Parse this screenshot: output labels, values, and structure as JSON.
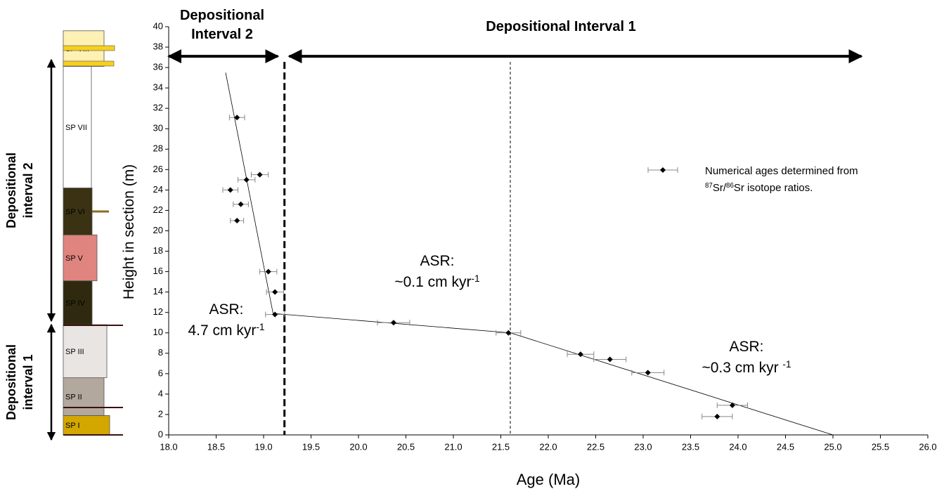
{
  "chart_data": {
    "type": "scatter",
    "x_label": "Age (Ma)",
    "y_label": "Height in section (m)",
    "xlim": [
      18,
      26
    ],
    "ylim": [
      0,
      40
    ],
    "xticks": [
      {
        "value": 18,
        "label": "18.0"
      },
      {
        "value": 18.5,
        "label": "18.5"
      },
      {
        "value": 19,
        "label": "19.0"
      },
      {
        "value": 19.5,
        "label": "19.5"
      },
      {
        "value": 20,
        "label": "20.0"
      },
      {
        "value": 20.5,
        "label": "20.5"
      },
      {
        "value": 21,
        "label": "21.0"
      },
      {
        "value": 21.5,
        "label": "21.5"
      },
      {
        "value": 22,
        "label": "22.0"
      },
      {
        "value": 22.5,
        "label": "22.5"
      },
      {
        "value": 23,
        "label": "23.0"
      },
      {
        "value": 23.5,
        "label": "23.5"
      },
      {
        "value": 24,
        "label": "24.0"
      },
      {
        "value": 24.5,
        "label": "24.5"
      },
      {
        "value": 25,
        "label": "25.0"
      },
      {
        "value": 25.5,
        "label": "25.5"
      },
      {
        "value": 26,
        "label": "26.0"
      }
    ],
    "yticks": [
      0,
      2,
      4,
      6,
      8,
      10,
      12,
      14,
      16,
      18,
      20,
      22,
      24,
      26,
      28,
      30,
      32,
      34,
      36,
      38,
      40
    ],
    "series": [
      {
        "color": "#000000",
        "x": [
          18.72,
          18.96,
          18.82,
          18.65,
          18.76,
          18.72,
          19.05,
          19.12,
          19.12,
          20.37,
          21.58,
          22.34,
          22.65,
          23.05,
          23.94,
          23.78
        ],
        "y": [
          31.1,
          25.5,
          25.0,
          24.0,
          22.6,
          21.0,
          16.0,
          14.0,
          11.8,
          11.0,
          10.0,
          7.9,
          7.4,
          6.1,
          2.9,
          1.8
        ],
        "xerr": [
          0.08,
          0.09,
          0.09,
          0.08,
          0.08,
          0.07,
          0.09,
          0.09,
          0.1,
          0.17,
          0.13,
          0.14,
          0.17,
          0.17,
          0.16,
          0.16
        ]
      }
    ],
    "trend": {
      "x": [
        18.6,
        19.1,
        21.6,
        25.0
      ],
      "y": [
        35.5,
        11.9,
        10.0,
        0
      ]
    },
    "boundaries": [
      {
        "x": 19.22,
        "style": "thick"
      },
      {
        "x": 21.6,
        "style": "thin"
      }
    ],
    "intervals": [
      {
        "lines": [
          "Depositional",
          "Interval 2"
        ],
        "from": 18.0,
        "to": 19.15,
        "y": 37.1
      },
      {
        "lines": [
          "Depositional Interval 1"
        ],
        "from": 19.27,
        "to": 25.3,
        "y": 37.1
      }
    ],
    "annotations": [
      {
        "lines": [
          [
            {
              "text": "ASR:"
            }
          ],
          [
            {
              "text": "4.7 cm kyr"
            },
            {
              "sup": "-1"
            }
          ]
        ]
      },
      {
        "lines": [
          [
            {
              "text": "ASR:"
            }
          ],
          [
            {
              "text": "~0.1 cm kyr"
            },
            {
              "sup": "-1"
            }
          ]
        ]
      },
      {
        "lines": [
          [
            {
              "text": "ASR:"
            }
          ],
          [
            {
              "text": "~0.3 cm kyr "
            },
            {
              "sup": "-1"
            }
          ]
        ]
      }
    ],
    "legend": {
      "lines": [
        [
          {
            "text": "Numerical ages determined from"
          }
        ],
        [
          {
            "sup": "87"
          },
          {
            "text": "Sr/"
          },
          {
            "sup": "86"
          },
          {
            "text": "Sr isotope ratios."
          }
        ]
      ]
    },
    "column": {
      "units": [
        {
          "name": "SP I",
          "bottom": 0,
          "top": 1.9,
          "color": "#d4a600"
        },
        {
          "name": "SP II",
          "bottom": 1.9,
          "top": 5.6,
          "color": "#b3a89d"
        },
        {
          "name": "SP III",
          "bottom": 5.6,
          "top": 10.8,
          "color": "#e9e5e3"
        },
        {
          "name": "SP IV",
          "bottom": 10.8,
          "top": 15.1,
          "color": "#2f2a0f"
        },
        {
          "name": "SP V",
          "bottom": 15.1,
          "top": 19.6,
          "color": "#e08480"
        },
        {
          "name": "SP VI",
          "bottom": 19.6,
          "top": 24.2,
          "color": "#3a3212"
        },
        {
          "name": "SP VII",
          "bottom": 24.2,
          "top": 36.1,
          "color": "#ffffff"
        },
        {
          "name": "SP VIII",
          "bottom": 36.1,
          "top": 39.6,
          "color": "#fff0b4"
        }
      ],
      "intervals": [
        {
          "label": "Depositional interval 2"
        },
        {
          "label": "Depositional interval 1"
        }
      ]
    }
  }
}
